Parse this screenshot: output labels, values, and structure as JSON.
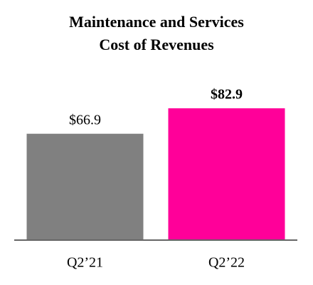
{
  "chart_data": {
    "type": "bar",
    "title": [
      "Maintenance and Services",
      "Cost of Revenues"
    ],
    "categories": [
      "Q2’21",
      "Q2’22"
    ],
    "values": [
      66.9,
      82.9
    ],
    "value_labels": [
      "$66.9",
      "$82.9"
    ],
    "value_label_bold": [
      false,
      true
    ],
    "colors": [
      "#808080",
      "#ff0099"
    ]
  }
}
